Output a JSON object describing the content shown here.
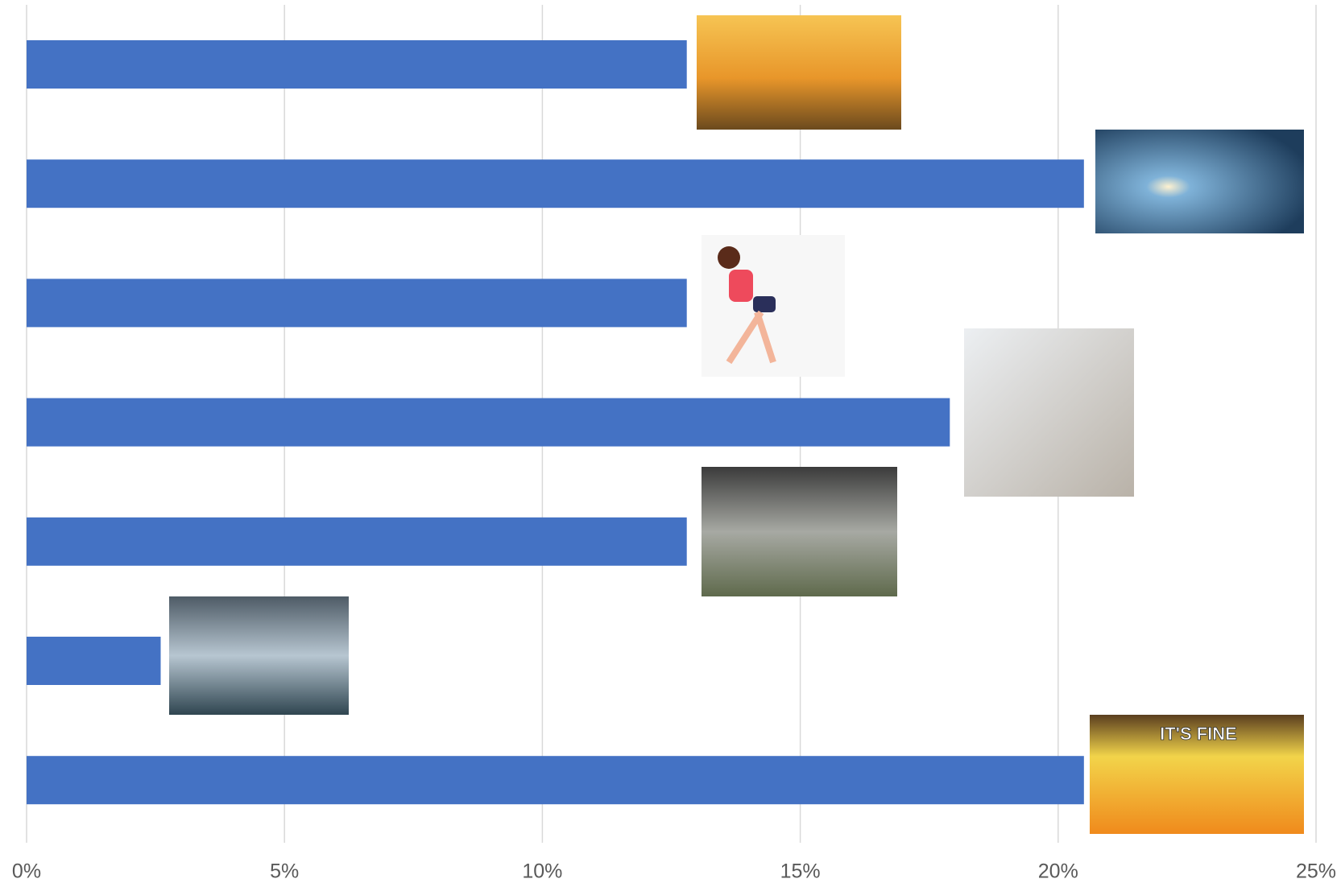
{
  "chart_data": {
    "type": "hbar",
    "categories": [
      null,
      null,
      null,
      null,
      null,
      null,
      null
    ],
    "values": [
      12.8,
      20.5,
      12.8,
      17.9,
      12.8,
      2.6,
      20.5
    ],
    "color": "#4472c4",
    "xlim": [
      0,
      25
    ],
    "xticks": [
      {
        "value": 0,
        "label": "0%"
      },
      {
        "value": 5,
        "label": "5%"
      },
      {
        "value": 10,
        "label": "10%"
      },
      {
        "value": 15,
        "label": "15%"
      },
      {
        "value": 20,
        "label": "20%"
      },
      {
        "value": 25,
        "label": "25%"
      }
    ],
    "grid": true,
    "annotation": "IT'S FINE"
  }
}
